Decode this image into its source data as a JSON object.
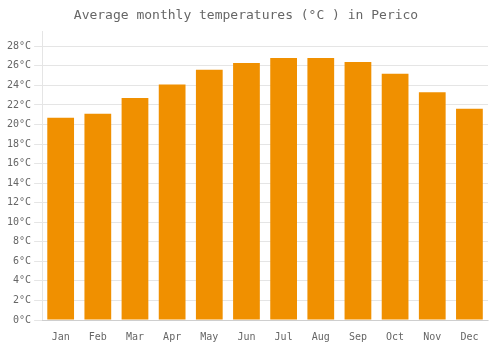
{
  "chart_data": {
    "type": "bar",
    "title": "Average monthly temperatures (°C ) in Perico",
    "categories": [
      "Jan",
      "Feb",
      "Mar",
      "Apr",
      "May",
      "Jun",
      "Jul",
      "Aug",
      "Sep",
      "Oct",
      "Nov",
      "Dec"
    ],
    "values": [
      20.7,
      21.1,
      22.7,
      24.1,
      25.6,
      26.3,
      26.8,
      26.8,
      26.4,
      25.2,
      23.3,
      21.6
    ],
    "color": "#F09000",
    "ylim": [
      0,
      29.5
    ],
    "yticks": [
      {
        "value": 0,
        "label": "0°C"
      },
      {
        "value": 2,
        "label": "2°C"
      },
      {
        "value": 4,
        "label": "4°C"
      },
      {
        "value": 6,
        "label": "6°C"
      },
      {
        "value": 8,
        "label": "8°C"
      },
      {
        "value": 10,
        "label": "10°C"
      },
      {
        "value": 12,
        "label": "12°C"
      },
      {
        "value": 14,
        "label": "14°C"
      },
      {
        "value": 16,
        "label": "16°C"
      },
      {
        "value": 18,
        "label": "18°C"
      },
      {
        "value": 20,
        "label": "20°C"
      },
      {
        "value": 22,
        "label": "22°C"
      },
      {
        "value": 24,
        "label": "24°C"
      },
      {
        "value": 26,
        "label": "26°C"
      },
      {
        "value": 28,
        "label": "28°C"
      }
    ],
    "grid": true
  }
}
